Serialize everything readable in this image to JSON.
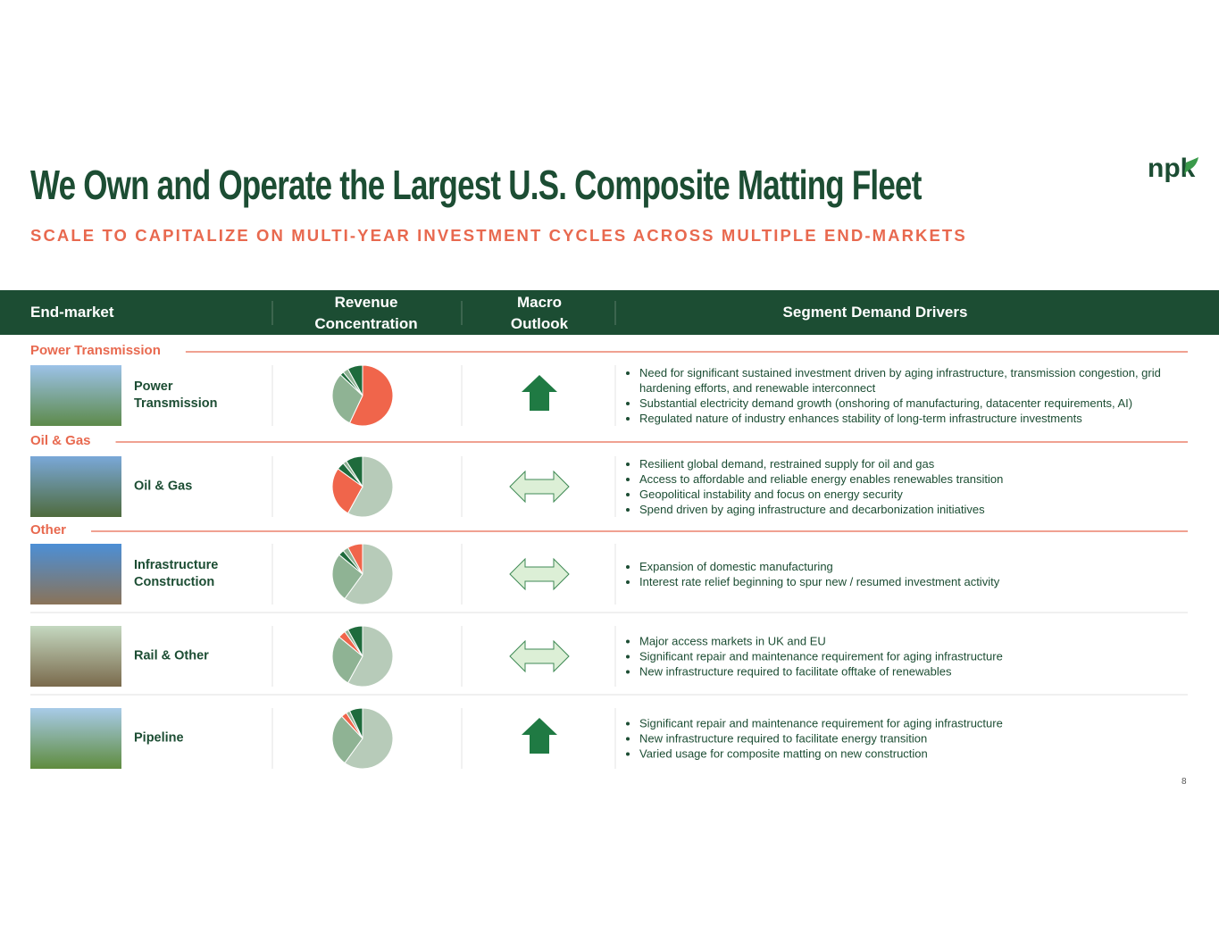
{
  "header": {
    "title": "We Own and Operate the Largest U.S. Composite Matting Fleet",
    "subtitle": "SCALE TO CAPITALIZE ON MULTI-YEAR INVESTMENT CYCLES ACROSS MULTIPLE END-MARKETS",
    "logo": "npk"
  },
  "table": {
    "columns": [
      "End-market",
      "Revenue Concentration",
      "Macro Outlook",
      "Segment Demand Drivers"
    ],
    "rows": [
      {
        "section": "Power Transmission",
        "name": "Power Transmission",
        "pie": {
          "values": [
            57,
            30,
            2,
            3,
            8
          ],
          "colors": [
            "#f0654b",
            "#8fb394",
            "#1e6b3c",
            "#8fb394",
            "#1e6b3c"
          ]
        },
        "outlook": "up",
        "drivers": [
          "Need for significant sustained investment driven by aging infrastructure, transmission congestion, grid hardening efforts, and renewable interconnect",
          "Substantial electricity demand growth (onshoring of manufacturing, datacenter requirements, AI)",
          "Regulated nature of industry enhances stability of long-term infrastructure investments"
        ]
      },
      {
        "section": "Oil & Gas",
        "name": "Oil & Gas",
        "pie": {
          "values": [
            58,
            27,
            4,
            2,
            9
          ],
          "colors": [
            "#b7cbb9",
            "#f0654b",
            "#1e6b3c",
            "#8fb394",
            "#1e6b3c"
          ]
        },
        "outlook": "flat",
        "drivers": [
          "Resilient global demand, restrained supply for oil and gas",
          "Access to affordable and reliable energy enables renewables transition",
          "Geopolitical instability and focus on energy security",
          "Spend driven by aging infrastructure and decarbonization initiatives"
        ]
      },
      {
        "section": "Other",
        "name": "Infrastructure Construction",
        "pie": {
          "values": [
            60,
            26,
            3,
            3,
            8
          ],
          "colors": [
            "#b7cbb9",
            "#8fb394",
            "#1e6b3c",
            "#8fb394",
            "#f0654b"
          ]
        },
        "outlook": "flat",
        "drivers": [
          "Expansion of domestic manufacturing",
          "Interest rate relief beginning to spur new / resumed investment activity"
        ]
      },
      {
        "name": "Rail & Other",
        "pie": {
          "values": [
            58,
            28,
            4,
            2,
            8
          ],
          "colors": [
            "#b7cbb9",
            "#8fb394",
            "#f0654b",
            "#8fb394",
            "#1e6b3c"
          ]
        },
        "outlook": "flat",
        "drivers": [
          "Major access markets in UK and EU",
          "Significant repair and maintenance requirement for aging infrastructure",
          "New infrastructure required to facilitate offtake of renewables"
        ]
      },
      {
        "name": "Pipeline",
        "pie": {
          "values": [
            60,
            28,
            3,
            2,
            7
          ],
          "colors": [
            "#b7cbb9",
            "#8fb394",
            "#f0654b",
            "#8fb394",
            "#1e6b3c"
          ]
        },
        "outlook": "up",
        "drivers": [
          "Significant repair and maintenance requirement for aging infrastructure",
          "New infrastructure required to facilitate energy transition",
          "Varied usage for composite matting on new construction"
        ]
      }
    ]
  },
  "page_number": "8"
}
